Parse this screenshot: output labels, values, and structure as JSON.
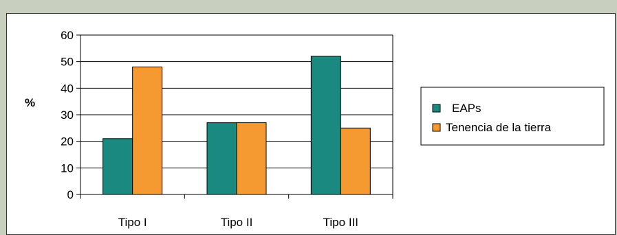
{
  "chart_data": {
    "type": "bar",
    "categories": [
      "Tipo I",
      "Tipo II",
      "Tipo III"
    ],
    "series": [
      {
        "name": "EAPs",
        "values": [
          21,
          27,
          52
        ],
        "color": "#1a8a80"
      },
      {
        "name": "Tenencia de la tierra",
        "values": [
          48,
          27,
          25
        ],
        "color": "#f49a30"
      }
    ],
    "title": "",
    "xlabel": "",
    "ylabel": "%",
    "ylim": [
      0,
      60
    ],
    "yticks": [
      0,
      10,
      20,
      30,
      40,
      50,
      60
    ],
    "grid": true,
    "legend_position": "right"
  }
}
